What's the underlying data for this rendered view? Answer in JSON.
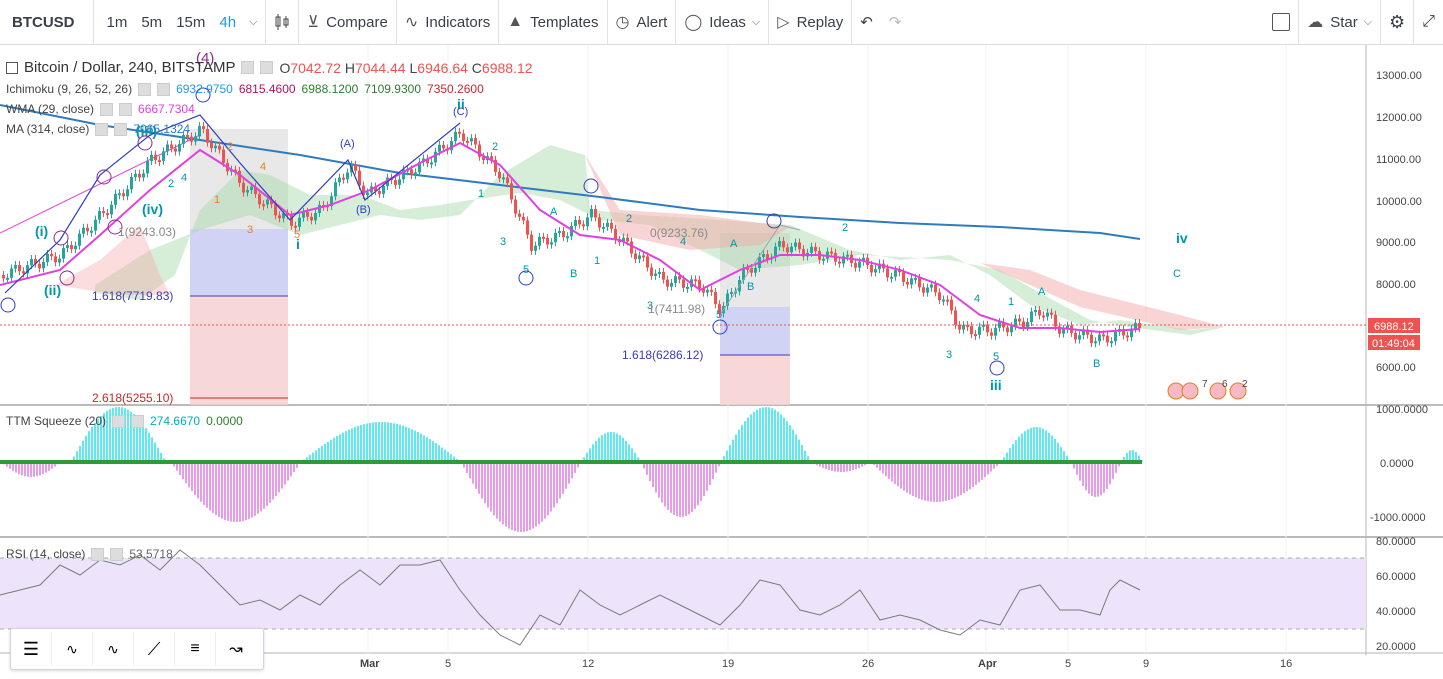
{
  "toolbar": {
    "symbol": "BTCUSD",
    "intervals": [
      "1m",
      "5m",
      "15m",
      "4h"
    ],
    "active_interval": "4h",
    "compare": "Compare",
    "indicators": "Indicators",
    "templates": "Templates",
    "alert": "Alert",
    "ideas": "Ideas",
    "replay": "Replay",
    "star": "Star"
  },
  "legend": {
    "title": "Bitcoin / Dollar, 240, BITSTAMP",
    "o_label": "O",
    "o": "7042.72",
    "h_label": "H",
    "h": "7044.44",
    "l_label": "L",
    "l": "6946.64",
    "c_label": "C",
    "c": "6988.12",
    "ichimoku": "Ichimoku (9, 26, 52, 26)",
    "ichimoku_vals": [
      "6932.9750",
      "6815.4600",
      "6988.1200",
      "7109.9300",
      "7350.2600"
    ],
    "wma": "WMA (29, close)",
    "wma_val": "6667.7304",
    "ma": "MA (314, close)",
    "ma_val": "7065.1324"
  },
  "price_axis": {
    "ticks": [
      "13000.00",
      "12000.00",
      "11000.00",
      "10000.00",
      "9000.00",
      "8000.00",
      "6000.00"
    ],
    "last_price": "6988.12",
    "countdown": "01:49:04"
  },
  "time_axis": [
    "Mar",
    "5",
    "12",
    "19",
    "26",
    "Apr",
    "5",
    "9",
    "16"
  ],
  "fib": {
    "left": [
      "1(9243.03)",
      "1.618(7719.83)",
      "2.618(5255.10)"
    ],
    "right": [
      "0(9233.76)",
      "1(7411.98)",
      "1.618(6286.12)"
    ]
  },
  "waves": {
    "big_4": "(4)",
    "labels_roman": [
      "(i)",
      "(ii)",
      "(iii)",
      "(iv)",
      "ii",
      "iii",
      "iv",
      "i"
    ],
    "labels_small": [
      "(A)",
      "(B)",
      "(C)",
      "A",
      "B",
      "C",
      "1",
      "2",
      "3",
      "4",
      "5"
    ]
  },
  "ttm": {
    "label": "TTM Squeeze (20)",
    "v1": "274.6670",
    "v2": "0.0000",
    "ticks": [
      "1000.0000",
      "0.0000",
      "-1000.0000"
    ]
  },
  "rsi": {
    "label": "RSI (14, close)",
    "value": "53.5718",
    "ticks": [
      "80.0000",
      "60.0000",
      "40.0000",
      "20.0000"
    ]
  },
  "events": [
    "7",
    "6",
    "2"
  ],
  "colors": {
    "accent": "#2196f3",
    "up_candle": "#26a69a",
    "down_candle": "#ef5350",
    "wma": "#e040e0",
    "ma": "#2e7bbf",
    "rsi_band": "#ede3fb",
    "ttm_up": "#5ee8f0",
    "ttm_down": "#e79bea",
    "price_label": "#ef5350"
  },
  "drawbar_tools": [
    "horizontal-lines",
    "elliott-impulse",
    "elliott-abc",
    "trend-line",
    "pitchfork",
    "path"
  ]
}
